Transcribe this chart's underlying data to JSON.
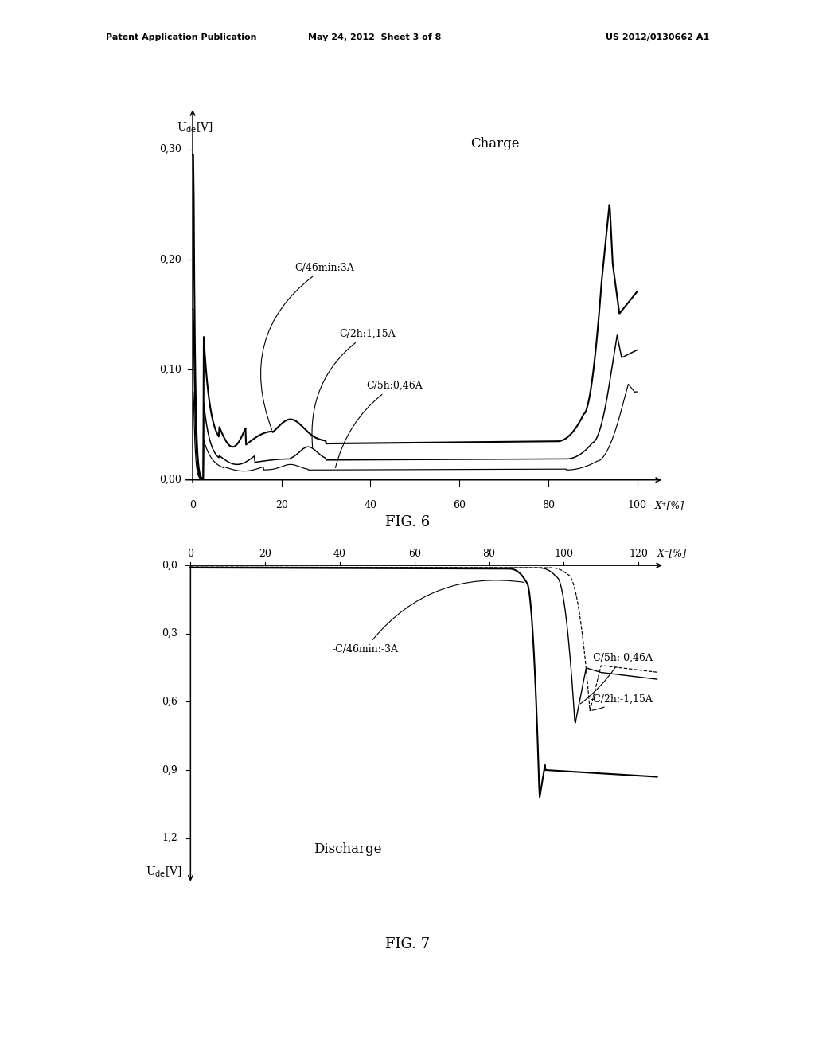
{
  "fig_width": 10.24,
  "fig_height": 13.2,
  "bg_color": "#ffffff",
  "header_left": "Patent Application Publication",
  "header_mid": "May 24, 2012  Sheet 3 of 8",
  "header_right": "US 2012/0130662 A1",
  "fig6": {
    "title": "Charge",
    "xlabel": "X⁺[%]",
    "ylabel_main": "U",
    "ylabel_sub": "de",
    "ylabel_unit": "[V]",
    "xlim": [
      -3,
      107
    ],
    "ylim": [
      -0.008,
      0.345
    ],
    "xticks": [
      0,
      20,
      40,
      60,
      80,
      100
    ],
    "yticks": [
      0.0,
      0.1,
      0.2,
      0.3
    ],
    "ytick_labels": [
      "0,00",
      "0,10",
      "0,20",
      "0,30"
    ],
    "label1": "C/46min:3A",
    "label2": "C/2h:1,15A",
    "label3": "C/5h:0,46A",
    "fig_caption": "FIG. 6"
  },
  "fig7": {
    "title": "Discharge",
    "xlabel": "X⁻[%]",
    "ylabel_main": "U",
    "ylabel_sub": "de",
    "ylabel_unit": "[V]",
    "xlim": [
      -3,
      128
    ],
    "ylim": [
      -1.42,
      0.06
    ],
    "xticks": [
      0,
      20,
      40,
      60,
      80,
      100,
      120
    ],
    "yticks": [
      0.0,
      -0.3,
      -0.6,
      -0.9,
      -1.2
    ],
    "ytick_labels": [
      "0,0",
      "0,3",
      "0,6",
      "0,9",
      "1,2"
    ],
    "label1": "-C/46min:-3A",
    "label2": "-C/5h:-0,46A",
    "label3": "-C/2h:-1,15A",
    "fig_caption": "FIG. 7"
  }
}
